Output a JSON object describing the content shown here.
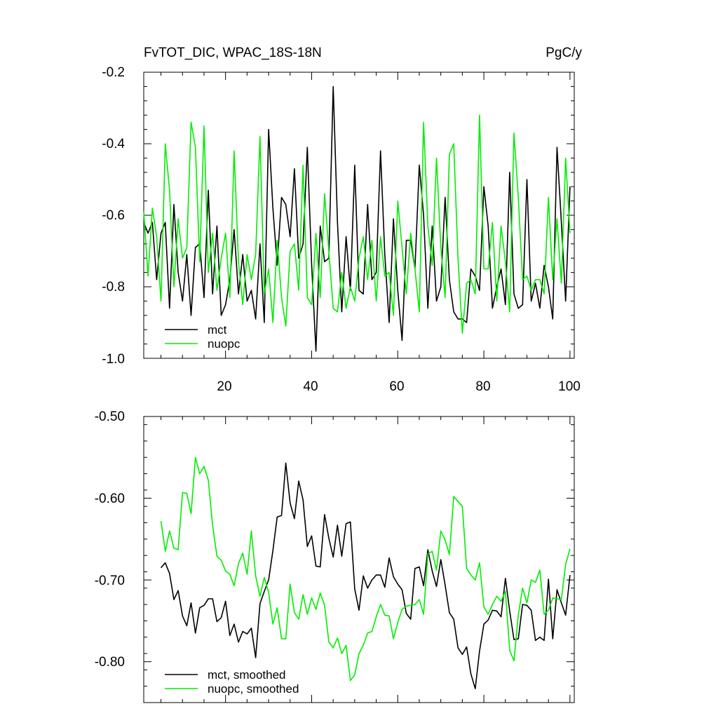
{
  "colors": {
    "mct": "#000000",
    "nuopc": "#00ee00"
  },
  "chart_data": [
    {
      "type": "line",
      "title": "FvTOT_DIC, WPAC_18S-18N",
      "units": "PgC/y",
      "xlim": [
        1,
        101
      ],
      "ylim": [
        -1.0,
        -0.2
      ],
      "x_ticks": [
        20,
        40,
        60,
        80,
        100
      ],
      "y_ticks": [
        -1.0,
        -0.8,
        -0.6,
        -0.4,
        -0.2
      ],
      "y_tick_labels": [
        "-1.0",
        "-0.8",
        "-0.6",
        "-0.4",
        "-0.2"
      ],
      "legend_position": "bottom-left",
      "x_start": 1,
      "series": [
        {
          "name": "mct",
          "color": "#000000",
          "values": [
            -0.62,
            -0.65,
            -0.62,
            -0.78,
            -0.65,
            -0.62,
            -0.86,
            -0.57,
            -0.76,
            -0.84,
            -0.71,
            -0.88,
            -0.69,
            -0.68,
            -0.83,
            -0.53,
            -0.82,
            -0.63,
            -0.88,
            -0.85,
            -0.78,
            -0.64,
            -0.82,
            -0.71,
            -0.84,
            -0.81,
            -0.89,
            -0.68,
            -0.9,
            -0.36,
            -0.58,
            -0.74,
            -0.55,
            -0.57,
            -0.66,
            -0.47,
            -0.72,
            -0.68,
            -0.41,
            -0.74,
            -0.98,
            -0.63,
            -0.73,
            -0.72,
            -0.24,
            -0.62,
            -0.87,
            -0.66,
            -0.81,
            -0.46,
            -0.81,
            -0.82,
            -0.57,
            -0.78,
            -0.76,
            -0.42,
            -0.71,
            -0.9,
            -0.61,
            -0.81,
            -0.95,
            -0.67,
            -0.67,
            -0.75,
            -0.46,
            -0.6,
            -0.86,
            -0.63,
            -0.84,
            -0.8,
            -0.55,
            -0.78,
            -0.87,
            -0.89,
            -0.89,
            -0.9,
            -0.75,
            -0.77,
            -0.81,
            -0.52,
            -0.63,
            -0.86,
            -0.8,
            -0.75,
            -0.85,
            -0.48,
            -0.82,
            -0.86,
            -0.85,
            -0.5,
            -0.84,
            -0.79,
            -0.86,
            -0.74,
            -0.8,
            -0.89,
            -0.41,
            -0.62,
            -0.84,
            -0.52
          ]
        },
        {
          "name": "nuopc",
          "color": "#00ee00",
          "values": [
            -0.59,
            -0.77,
            -0.58,
            -0.66,
            -0.84,
            -0.4,
            -0.53,
            -0.8,
            -0.61,
            -0.72,
            -0.69,
            -0.34,
            -0.41,
            -0.73,
            -0.35,
            -0.76,
            -0.65,
            -0.81,
            -0.72,
            -0.65,
            -0.83,
            -0.42,
            -0.73,
            -0.85,
            -0.71,
            -0.78,
            -0.71,
            -0.38,
            -0.82,
            -0.75,
            -0.9,
            -0.67,
            -0.83,
            -0.91,
            -0.7,
            -0.68,
            -0.81,
            -0.46,
            -0.83,
            -0.85,
            -0.65,
            -0.83,
            -0.54,
            -0.7,
            -0.86,
            -0.87,
            -0.76,
            -0.86,
            -0.8,
            -0.84,
            -0.72,
            -0.66,
            -0.78,
            -0.67,
            -0.84,
            -0.66,
            -0.77,
            -0.76,
            -0.88,
            -0.56,
            -0.69,
            -0.82,
            -0.65,
            -0.75,
            -0.87,
            -0.34,
            -0.63,
            -0.74,
            -0.44,
            -0.69,
            -0.83,
            -0.43,
            -0.4,
            -0.72,
            -0.93,
            -0.79,
            -0.78,
            -0.82,
            -0.32,
            -0.75,
            -0.75,
            -0.62,
            -0.84,
            -0.63,
            -0.73,
            -0.87,
            -0.37,
            -0.55,
            -0.78,
            -0.77,
            -0.81,
            -0.78,
            -0.78,
            -0.82,
            -0.55,
            -0.78,
            -0.61,
            -0.79,
            -0.44,
            -0.65
          ]
        }
      ],
      "legend": [
        {
          "label": "mct",
          "color": "#000000"
        },
        {
          "label": "nuopc",
          "color": "#00ee00"
        }
      ]
    },
    {
      "type": "line",
      "title": "",
      "xlim": [
        1,
        101
      ],
      "ylim": [
        -0.85,
        -0.5
      ],
      "y_ticks": [
        -0.8,
        -0.7,
        -0.6,
        -0.5
      ],
      "y_tick_labels": [
        "-0.80",
        "-0.70",
        "-0.60",
        "-0.50"
      ],
      "legend_position": "bottom-left",
      "x_start": 5,
      "series": [
        {
          "name": "mct, smoothed",
          "color": "#000000",
          "values": [
            -0.685,
            -0.679,
            -0.692,
            -0.724,
            -0.713,
            -0.744,
            -0.756,
            -0.728,
            -0.765,
            -0.734,
            -0.731,
            -0.723,
            -0.723,
            -0.751,
            -0.746,
            -0.726,
            -0.768,
            -0.754,
            -0.776,
            -0.763,
            -0.766,
            -0.759,
            -0.795,
            -0.729,
            -0.714,
            -0.7,
            -0.664,
            -0.623,
            -0.621,
            -0.557,
            -0.606,
            -0.625,
            -0.579,
            -0.602,
            -0.659,
            -0.646,
            -0.683,
            -0.684,
            -0.62,
            -0.649,
            -0.672,
            -0.633,
            -0.671,
            -0.631,
            -0.629,
            -0.711,
            -0.737,
            -0.695,
            -0.71,
            -0.7,
            -0.694,
            -0.694,
            -0.709,
            -0.673,
            -0.696,
            -0.705,
            -0.712,
            -0.741,
            -0.748,
            -0.686,
            -0.684,
            -0.707,
            -0.663,
            -0.689,
            -0.708,
            -0.675,
            -0.706,
            -0.74,
            -0.748,
            -0.783,
            -0.791,
            -0.782,
            -0.815,
            -0.833,
            -0.787,
            -0.754,
            -0.749,
            -0.737,
            -0.738,
            -0.745,
            -0.698,
            -0.738,
            -0.773,
            -0.772,
            -0.73,
            -0.731,
            -0.737,
            -0.774,
            -0.77,
            -0.774,
            -0.699,
            -0.772,
            -0.712,
            -0.728,
            -0.743,
            -0.694
          ]
        },
        {
          "name": "nuopc, smoothed",
          "color": "#00ee00",
          "values": [
            -0.628,
            -0.665,
            -0.64,
            -0.661,
            -0.663,
            -0.593,
            -0.594,
            -0.619,
            -0.55,
            -0.57,
            -0.561,
            -0.578,
            -0.633,
            -0.671,
            -0.676,
            -0.689,
            -0.693,
            -0.707,
            -0.68,
            -0.667,
            -0.693,
            -0.64,
            -0.695,
            -0.72,
            -0.697,
            -0.715,
            -0.754,
            -0.734,
            -0.772,
            -0.772,
            -0.705,
            -0.74,
            -0.748,
            -0.718,
            -0.742,
            -0.722,
            -0.736,
            -0.716,
            -0.731,
            -0.776,
            -0.783,
            -0.771,
            -0.79,
            -0.78,
            -0.823,
            -0.816,
            -0.79,
            -0.78,
            -0.765,
            -0.763,
            -0.745,
            -0.73,
            -0.743,
            -0.744,
            -0.772,
            -0.752,
            -0.736,
            -0.732,
            -0.731,
            -0.73,
            -0.724,
            -0.742,
            -0.668,
            -0.665,
            -0.688,
            -0.64,
            -0.651,
            -0.669,
            -0.598,
            -0.604,
            -0.61,
            -0.686,
            -0.694,
            -0.7,
            -0.679,
            -0.733,
            -0.742,
            -0.73,
            -0.72,
            -0.726,
            -0.714,
            -0.786,
            -0.799,
            -0.743,
            -0.71,
            -0.728,
            -0.7,
            -0.703,
            -0.688,
            -0.742,
            -0.737,
            -0.722,
            -0.723,
            -0.724,
            -0.681,
            -0.662
          ]
        }
      ],
      "legend": [
        {
          "label": "mct, smoothed",
          "color": "#000000"
        },
        {
          "label": "nuopc, smoothed",
          "color": "#00ee00"
        }
      ]
    }
  ]
}
